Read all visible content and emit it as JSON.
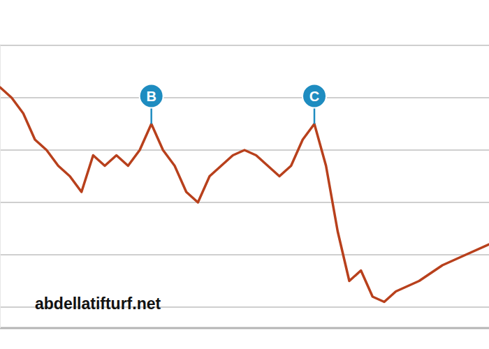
{
  "chart_data": {
    "type": "line",
    "x": [
      0,
      1,
      2,
      3,
      4,
      5,
      6,
      7,
      8,
      9,
      10,
      11,
      12,
      13,
      14,
      15,
      16,
      17,
      18,
      19,
      20,
      21,
      22,
      23,
      24,
      25,
      26,
      27,
      28,
      29,
      30,
      31,
      32,
      33,
      34,
      36,
      38,
      40,
      42
    ],
    "values": [
      4.2,
      4.0,
      3.7,
      3.2,
      3.0,
      2.7,
      2.5,
      2.2,
      2.9,
      2.7,
      2.9,
      2.7,
      3.0,
      3.5,
      3.0,
      2.7,
      2.2,
      2.0,
      2.5,
      2.7,
      2.9,
      3.0,
      2.9,
      2.7,
      2.5,
      2.7,
      3.2,
      3.5,
      2.7,
      1.45,
      0.5,
      0.7,
      0.2,
      0.1,
      0.3,
      0.5,
      0.8,
      1.0,
      1.2
    ],
    "color": "#b8401c",
    "xlim": [
      0,
      42
    ],
    "ylim": [
      -0.4,
      5
    ],
    "yticks": [
      0,
      1,
      2,
      3,
      4,
      5
    ],
    "grid": true,
    "tick_labels": false,
    "annotations": [
      {
        "x": 13,
        "text": "B"
      },
      {
        "x": 27,
        "text": "C"
      }
    ],
    "watermark": "abdellatifturf.net"
  }
}
